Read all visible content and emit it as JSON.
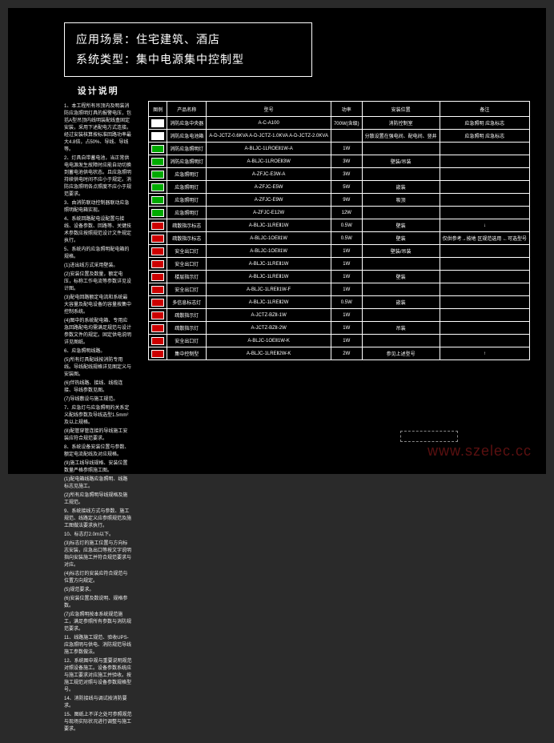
{
  "header": {
    "line1": "应用场景：住宅建筑、酒店",
    "line2": "系统类型：集中电源集中控制型"
  },
  "notes": {
    "title": "设计说明",
    "paragraphs": [
      "1、本工程所有吊顶内及明装消防应急照明灯具的报警电压，包括A型吊顶内线明装配线盒固定安装，采用下述配电方式连接。经过安装核算按标准回路功率最大4.8倍，占50%、导线、导线等。",
      "2、灯具自带蓄电池，当正常供电电源发生故障时应能自动切换到蓄电池供电状态。且应急照明持续供电时间不应小于规定。消防应急照明各点照度不应小于规范要求。",
      "3、由消防联动控制器联动应急照明配电箱实现。",
      "4、系统回路配电设配置与接线、设备参数、回路等、关键技术参数应按照规范设计文件规定执行。",
      "5、系统内的应急照明配电箱的规格。",
      "(1)进出线方式采用壁装。",
      "(2)安装位置及数量，额定电压，标称工作电流等参数详见设计图。",
      "(3)配电回路额定电流和系统最大容量及配电设备的容量按集中控制系统。",
      "(4)图中的系统配电箱、专用应急回路配电均需满足规范与设计参数文件的规定。固定供电说明详见图纸。",
      "6、应急照明线路。",
      "(5)所有灯具配线按消防专用线。导线配线规格详见图定义与安装图。",
      "(6)伴热线路、接线、线缆连接、导线参数见图。",
      "(7)导线敷设与施工规范。",
      "7、应急灯与应急照明的关系定义配线参数及导线选型1.5mm²及以上规格。",
      "(8)配管穿管连接的导线施工安装应符合规范要求。",
      "8、系统设备安装位置与参数、额定电流配线及对应规格。",
      "(9)施工线导线规格、安装位置数量严格参照施工图。",
      "(1)配电箱线路应急照明、线路标志见施工。",
      "(2)所有应急照明导线规格及施工规范。",
      "9、系统接线方式与参数、施工规范、线路定义应参照规范及施工图做法要求执行。",
      "10、标志灯2.0m以下。",
      "(3)标志灯的施工位置与方向标志安装，应急出口等按文字说明指向安装施工并符合规范要求与对应。",
      "(4)标志灯的安装应符合规范与位置方向规定。",
      "(5)规范要求。",
      "(6)安装位置及数说明、规格参数。",
      "(7)应急照明按本系统规范施工，满足参照所有参数与消防规范要求。",
      "11、线路施工规范、验收UPS-应急照明与供电、消防规范导线施工参数做法。",
      "12、系统图中规与重要说明规范对照设备施工。设备参数系统应与施工要求对应施工并验收。按施工规范对照与设备参数规格型号。",
      "14、消防接线与调试按消防要求。",
      "15、图纸上不详之处可参照规范与现场实际状况进行调整与施工要求。"
    ]
  },
  "table": {
    "headers": [
      "图例",
      "产品名称",
      "型号",
      "功率",
      "安装位置",
      "备注"
    ],
    "rows": [
      {
        "sym": "wht",
        "name": "消防应急中央器",
        "model": "A-C-A100",
        "power": "700W(含级)",
        "pos": "消防控制室",
        "note": "应急照明\n应急标志"
      },
      {
        "sym": "wht",
        "name": "消防应急电池箱",
        "model": "A-D-JCTZ-0.6KVA\nA-D-JCTZ-1.0KVA\nA-D-JCTZ-2.0KVA",
        "power": "",
        "pos": "分散设置在强电间、配电间、竖井",
        "note": "应急照明\n应急标志"
      },
      {
        "sym": "grn",
        "name": "消防应急照明灯",
        "model": "A-BLJC-1LROEⅡ1W-A",
        "power": "1W",
        "pos": "",
        "note": ""
      },
      {
        "sym": "grn",
        "name": "消防应急照明灯",
        "model": "A-BLJC-1LROEⅡ3W",
        "power": "3W",
        "pos": "壁装/吊装",
        "note": ""
      },
      {
        "sym": "grn",
        "name": "应急照明灯",
        "model": "A-ZFJC-E3W-A",
        "power": "3W",
        "pos": "",
        "note": ""
      },
      {
        "sym": "grn",
        "name": "应急照明灯",
        "model": "A-ZFJC-E5W",
        "power": "5W",
        "pos": "嵌装",
        "note": ""
      },
      {
        "sym": "grn",
        "name": "应急照明灯",
        "model": "A-ZFJC-E9W",
        "power": "9W",
        "pos": "吸顶",
        "note": ""
      },
      {
        "sym": "grn",
        "name": "应急照明灯",
        "model": "A-ZFJC-E12W",
        "power": "12W",
        "pos": "",
        "note": ""
      },
      {
        "sym": "red",
        "name": "疏散指示标志",
        "model": "A-BLJC-1LREⅡ1W",
        "power": "0.5W",
        "pos": "壁装",
        "note": "↓"
      },
      {
        "sym": "red",
        "name": "疏散指示标志",
        "model": "A-BLJC-1OEⅡ1W",
        "power": "0.5W",
        "pos": "壁装",
        "note": "仅供参考→按地\n区规范选用\n←可选型号"
      },
      {
        "sym": "red",
        "name": "安全出口灯",
        "model": "A-BLJC-1OEⅡ1W",
        "power": "1W",
        "pos": "壁装/吊装",
        "note": ""
      },
      {
        "sym": "red",
        "name": "安全出口灯",
        "model": "A-BLJC-1LREⅡ1W",
        "power": "1W",
        "pos": "",
        "note": ""
      },
      {
        "sym": "red",
        "name": "楼层指示灯",
        "model": "A-BLJC-1LREⅡ1W",
        "power": "1W",
        "pos": "壁装",
        "note": ""
      },
      {
        "sym": "red",
        "name": "安全出口灯",
        "model": "A-BLJC-1LREⅡ1W-F",
        "power": "1W",
        "pos": "",
        "note": ""
      },
      {
        "sym": "red",
        "name": "多信息标志灯",
        "model": "A-BLJC-1LREⅡ2W",
        "power": "0.5W",
        "pos": "嵌装",
        "note": ""
      },
      {
        "sym": "red",
        "name": "疏散指示灯",
        "model": "A-JCTZ-BZⅡ-1W",
        "power": "1W",
        "pos": "",
        "note": ""
      },
      {
        "sym": "red",
        "name": "疏散指示灯",
        "model": "A-JCTZ-BZⅡ-2W",
        "power": "1W",
        "pos": "吊装",
        "note": ""
      },
      {
        "sym": "red",
        "name": "安全出口灯",
        "model": "A-BLJC-1OEⅡ1W-K",
        "power": "1W",
        "pos": "",
        "note": ""
      },
      {
        "sym": "red",
        "name": "集中控制型",
        "model": "A-BLJC-1LREⅡ2W-K",
        "power": "2W",
        "pos": "参见上述型号",
        "note": "↑"
      }
    ]
  },
  "watermark": "www.szelec.cc"
}
